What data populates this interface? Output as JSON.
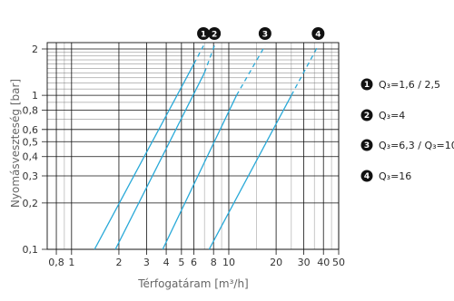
{
  "chart_data": {
    "type": "line",
    "xlabel": "Térfogatáram [m³/h]",
    "ylabel": "Nyomásveszteség [bar]",
    "x_scale": "log",
    "y_scale": "log",
    "xlim": [
      0.7,
      50
    ],
    "ylim": [
      0.1,
      2.2
    ],
    "x_ticks": [
      0.8,
      1,
      2,
      3,
      4,
      5,
      6,
      8,
      10,
      20,
      30,
      40,
      50
    ],
    "x_tick_labels": [
      "0,8",
      "1",
      "2",
      "3",
      "4",
      "5",
      "6",
      "8",
      "10",
      "20",
      "30",
      "40",
      "50"
    ],
    "y_ticks": [
      0.1,
      0.2,
      0.3,
      0.4,
      0.5,
      0.6,
      0.8,
      1,
      2
    ],
    "y_tick_labels": [
      "0,1",
      "0,2",
      "0,3",
      "0,4",
      "0,5",
      "0,6",
      "0,8",
      "1",
      "2"
    ],
    "grid": true,
    "line_color": "#29a9d8",
    "series": [
      {
        "marker": "1",
        "legend_label": "Q₃=1,6 / 2,5",
        "solid": [
          [
            1.4,
            0.1
          ],
          [
            6.0,
            1.6
          ]
        ],
        "dashed": [
          [
            6.0,
            1.6
          ],
          [
            6.9,
            2.1
          ]
        ]
      },
      {
        "marker": "2",
        "legend_label": "Q₃=4",
        "solid": [
          [
            1.9,
            0.1
          ],
          [
            7.0,
            1.4
          ]
        ],
        "dashed": [
          [
            7.0,
            1.4
          ],
          [
            8.1,
            2.1
          ]
        ]
      },
      {
        "marker": "3",
        "legend_label": "Q₃=6,3 / Q₃=10",
        "solid": [
          [
            3.8,
            0.1
          ],
          [
            11.2,
            1.0
          ]
        ],
        "dashed": [
          [
            11.2,
            1.0
          ],
          [
            17.0,
            2.1
          ]
        ]
      },
      {
        "marker": "4",
        "legend_label": "Q₃=16",
        "solid": [
          [
            7.5,
            0.1
          ],
          [
            25.0,
            1.0
          ]
        ],
        "dashed": [
          [
            25.0,
            1.0
          ],
          [
            37.0,
            2.1
          ]
        ]
      }
    ]
  }
}
